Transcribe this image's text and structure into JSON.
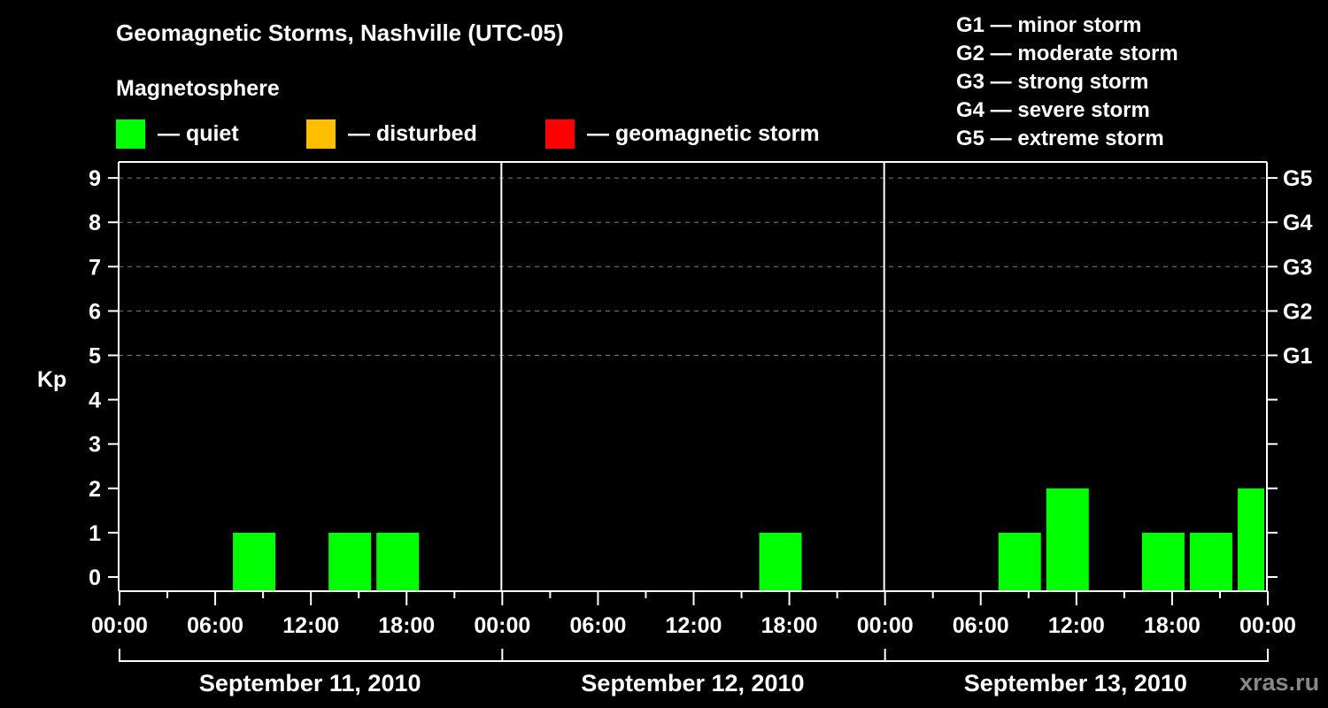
{
  "header": {
    "title": "Geomagnetic Storms, Nashville (UTC-05)",
    "subtitle": "Magnetosphere"
  },
  "legend": [
    {
      "label": "— quiet",
      "color": "#00ff00"
    },
    {
      "label": "— disturbed",
      "color": "#ffbf00"
    },
    {
      "label": "— geomagnetic storm",
      "color": "#ff0000"
    }
  ],
  "storm_scale": [
    {
      "label": "G1 — minor storm"
    },
    {
      "label": "G2 — moderate storm"
    },
    {
      "label": "G3 — strong storm"
    },
    {
      "label": "G4 — severe storm"
    },
    {
      "label": "G5 — extreme storm"
    }
  ],
  "watermark": "xras.ru",
  "colors": {
    "background": "#000000",
    "axis": "#ffffff",
    "grid": "#808080",
    "quiet": "#00ff00",
    "disturbed": "#ffbf00",
    "storm": "#ff0000",
    "watermark": "#888888"
  },
  "chart_data": {
    "type": "bar",
    "title": "Geomagnetic Storms, Nashville (UTC-05)",
    "xlabel": "",
    "ylabel": "Kp",
    "ylim": [
      0,
      9
    ],
    "yticks": [
      0,
      1,
      2,
      3,
      4,
      5,
      6,
      7,
      8,
      9
    ],
    "right_axis_ticks": [
      {
        "value": 5,
        "label": "G1"
      },
      {
        "value": 6,
        "label": "G2"
      },
      {
        "value": 7,
        "label": "G3"
      },
      {
        "value": 8,
        "label": "G4"
      },
      {
        "value": 9,
        "label": "G5"
      }
    ],
    "grid": {
      "y_dashed_at": [
        5,
        6,
        7,
        8,
        9
      ]
    },
    "x_tick_labels": [
      "00:00",
      "06:00",
      "12:00",
      "18:00",
      "00:00",
      "06:00",
      "12:00",
      "18:00",
      "00:00",
      "06:00",
      "12:00",
      "18:00",
      "00:00"
    ],
    "days": [
      "September 11, 2010",
      "September 12, 2010",
      "September 13, 2010"
    ],
    "interval_hours": 3,
    "categories": [
      "Sep 11 00:00",
      "Sep 11 03:00",
      "Sep 11 06:00",
      "Sep 11 09:00",
      "Sep 11 12:00",
      "Sep 11 15:00",
      "Sep 11 18:00",
      "Sep 11 21:00",
      "Sep 12 00:00",
      "Sep 12 03:00",
      "Sep 12 06:00",
      "Sep 12 09:00",
      "Sep 12 12:00",
      "Sep 12 15:00",
      "Sep 12 18:00",
      "Sep 12 21:00",
      "Sep 13 00:00",
      "Sep 13 03:00",
      "Sep 13 06:00",
      "Sep 13 09:00",
      "Sep 13 12:00",
      "Sep 13 15:00",
      "Sep 13 18:00",
      "Sep 13 21:00"
    ],
    "values": [
      0,
      0,
      1,
      0,
      1,
      1,
      0,
      0,
      0,
      0,
      0,
      0,
      0,
      1,
      0,
      0,
      0,
      0,
      1,
      2,
      0,
      1,
      1,
      2
    ],
    "status": [
      "quiet",
      "quiet",
      "quiet",
      "quiet",
      "quiet",
      "quiet",
      "quiet",
      "quiet",
      "quiet",
      "quiet",
      "quiet",
      "quiet",
      "quiet",
      "quiet",
      "quiet",
      "quiet",
      "quiet",
      "quiet",
      "quiet",
      "quiet",
      "quiet",
      "quiet",
      "quiet",
      "quiet"
    ],
    "legend": [
      "quiet",
      "disturbed",
      "geomagnetic storm"
    ]
  }
}
